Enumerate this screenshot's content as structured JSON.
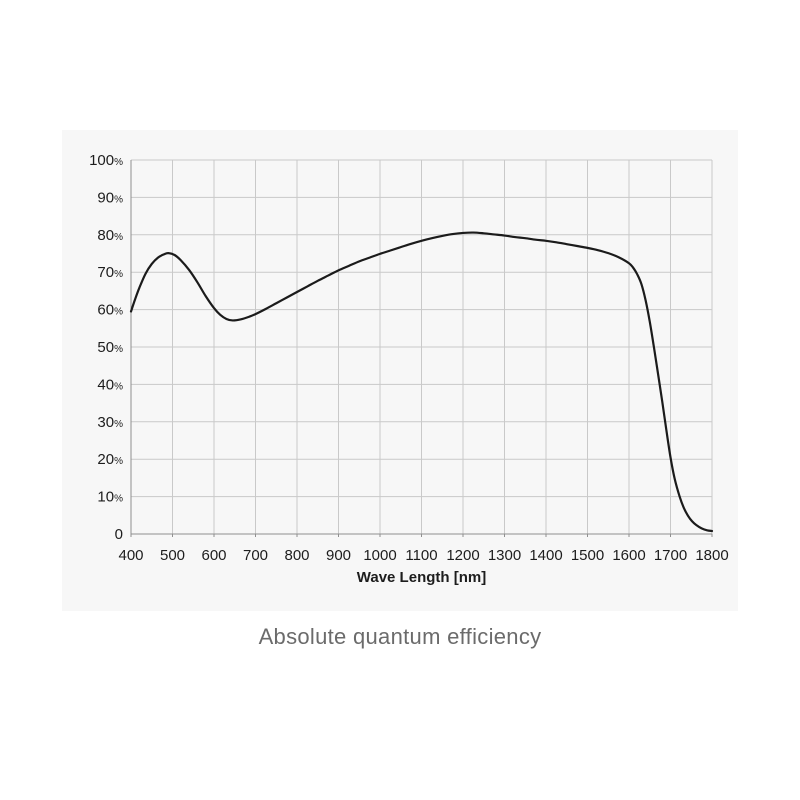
{
  "caption": "Absolute quantum efficiency",
  "chart_data": {
    "type": "line",
    "title": "",
    "xlabel": "Wave Length [nm]",
    "ylabel": "",
    "xlim": [
      400,
      1800
    ],
    "ylim": [
      0,
      100
    ],
    "grid": true,
    "legend": "none",
    "x_ticks": [
      400,
      500,
      600,
      700,
      800,
      900,
      1000,
      1100,
      1200,
      1300,
      1400,
      1500,
      1600,
      1700,
      1800
    ],
    "y_ticks": [
      {
        "value": 0,
        "num": "0",
        "suffix": ""
      },
      {
        "value": 10,
        "num": "10",
        "suffix": "%"
      },
      {
        "value": 20,
        "num": "20",
        "suffix": "%"
      },
      {
        "value": 30,
        "num": "30",
        "suffix": "%"
      },
      {
        "value": 40,
        "num": "40",
        "suffix": "%"
      },
      {
        "value": 50,
        "num": "50",
        "suffix": "%"
      },
      {
        "value": 60,
        "num": "60",
        "suffix": "%"
      },
      {
        "value": 70,
        "num": "70",
        "suffix": "%"
      },
      {
        "value": 80,
        "num": "80",
        "suffix": "%"
      },
      {
        "value": 90,
        "num": "90",
        "suffix": "%"
      },
      {
        "value": 100,
        "num": "100",
        "suffix": "%"
      }
    ],
    "series": [
      {
        "name": "absolute-quantum-efficiency",
        "points": [
          [
            400,
            59.5
          ],
          [
            410,
            62.8
          ],
          [
            420,
            65.8
          ],
          [
            435,
            69.6
          ],
          [
            450,
            72.2
          ],
          [
            465,
            73.9
          ],
          [
            480,
            74.8
          ],
          [
            490,
            75.1
          ],
          [
            505,
            74.6
          ],
          [
            520,
            73.2
          ],
          [
            540,
            70.6
          ],
          [
            560,
            67.3
          ],
          [
            580,
            63.6
          ],
          [
            600,
            60.4
          ],
          [
            615,
            58.6
          ],
          [
            630,
            57.5
          ],
          [
            645,
            57.1
          ],
          [
            665,
            57.4
          ],
          [
            685,
            58.1
          ],
          [
            700,
            58.8
          ],
          [
            725,
            60.2
          ],
          [
            750,
            61.7
          ],
          [
            775,
            63.2
          ],
          [
            800,
            64.7
          ],
          [
            825,
            66.2
          ],
          [
            850,
            67.7
          ],
          [
            875,
            69.1
          ],
          [
            900,
            70.5
          ],
          [
            925,
            71.7
          ],
          [
            950,
            72.9
          ],
          [
            975,
            73.9
          ],
          [
            1000,
            74.9
          ],
          [
            1025,
            75.8
          ],
          [
            1050,
            76.7
          ],
          [
            1075,
            77.6
          ],
          [
            1100,
            78.4
          ],
          [
            1125,
            79.1
          ],
          [
            1150,
            79.7
          ],
          [
            1175,
            80.2
          ],
          [
            1200,
            80.5
          ],
          [
            1225,
            80.6
          ],
          [
            1250,
            80.4
          ],
          [
            1275,
            80.1
          ],
          [
            1300,
            79.8
          ],
          [
            1325,
            79.4
          ],
          [
            1350,
            79.1
          ],
          [
            1375,
            78.7
          ],
          [
            1400,
            78.4
          ],
          [
            1425,
            78.0
          ],
          [
            1450,
            77.5
          ],
          [
            1475,
            77.0
          ],
          [
            1500,
            76.5
          ],
          [
            1525,
            75.9
          ],
          [
            1550,
            75.1
          ],
          [
            1575,
            74.0
          ],
          [
            1600,
            72.4
          ],
          [
            1610,
            71.2
          ],
          [
            1620,
            69.4
          ],
          [
            1630,
            66.8
          ],
          [
            1640,
            62.5
          ],
          [
            1650,
            56.8
          ],
          [
            1660,
            50.0
          ],
          [
            1670,
            42.8
          ],
          [
            1680,
            35.5
          ],
          [
            1690,
            27.8
          ],
          [
            1700,
            20.5
          ],
          [
            1710,
            14.8
          ],
          [
            1722,
            10.0
          ],
          [
            1732,
            7.0
          ],
          [
            1742,
            4.9
          ],
          [
            1752,
            3.4
          ],
          [
            1762,
            2.4
          ],
          [
            1775,
            1.5
          ],
          [
            1788,
            1.0
          ],
          [
            1800,
            0.8
          ]
        ]
      }
    ],
    "colors": {
      "curve": "#1b1b1b",
      "grid": "#c9c9c9",
      "axis": "#8f8f8f",
      "tick_text": "#1d1d1d",
      "panel_bg": "#f7f7f7",
      "page_bg": "#ffffff",
      "caption_text": "#6b6b6b"
    }
  }
}
